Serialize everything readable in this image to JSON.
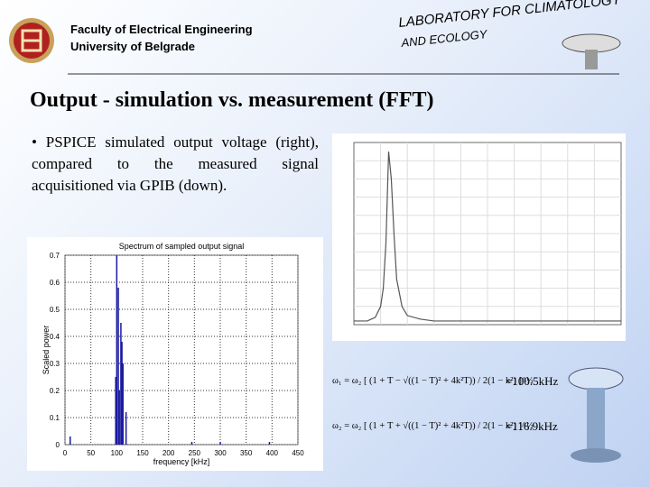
{
  "header": {
    "faculty": "Faculty of Electrical Engineering",
    "university": "University of Belgrade",
    "lab_line1": "LABORATORY FOR CLIMATOLOGY",
    "lab_line2": "AND ECOLOGY"
  },
  "slide": {
    "title": "Output - simulation vs. measurement (FFT)",
    "bullet": "• PSPICE simulated output voltage (right), compared to the measured signal acquisitioned via GPIB (down).",
    "equations": [
      {
        "formula": "ω₁ = ω₂ [ (1 + T − √((1 − T)² + 4k²T)) / 2(1 − k²) ]^½",
        "result": "=100.5kHz"
      },
      {
        "formula": "ω₂ = ω₂ [ (1 + T + √((1 − T)² + 4k²T)) / 2(1 − k²) ]^½",
        "result": "=116.9kHz"
      }
    ]
  },
  "chart_data": [
    {
      "type": "line",
      "color": "#555555",
      "x": [
        0,
        5,
        8,
        10,
        11,
        12,
        13,
        14,
        15,
        16,
        18,
        20,
        25,
        30,
        40,
        50,
        60,
        70,
        80,
        90,
        100
      ],
      "values": [
        0.02,
        0.02,
        0.04,
        0.1,
        0.2,
        0.45,
        0.95,
        0.8,
        0.5,
        0.25,
        0.1,
        0.05,
        0.03,
        0.02,
        0.02,
        0.02,
        0.02,
        0.02,
        0.02,
        0.02,
        0.02
      ],
      "xlim": [
        0,
        100
      ],
      "ylim": [
        0,
        1
      ]
    },
    {
      "type": "bar",
      "title": "Spectrum of sampled output signal",
      "xlabel": "frequency [kHz]",
      "ylabel": "Scaled power",
      "color": "#1a1aa0",
      "x": [
        10,
        98,
        100,
        103,
        105,
        108,
        110,
        112,
        118,
        245,
        300,
        395
      ],
      "values": [
        0.03,
        0.25,
        0.7,
        0.58,
        0.2,
        0.45,
        0.38,
        0.3,
        0.12,
        0.01,
        0.01,
        0.01
      ],
      "xlim": [
        0,
        450
      ],
      "xticks": [
        0,
        50,
        100,
        150,
        200,
        250,
        300,
        350,
        400,
        450
      ],
      "ylim": [
        0,
        0.7
      ],
      "yticks": [
        0,
        0.1,
        0.2,
        0.3,
        0.4,
        0.5,
        0.6,
        0.7
      ],
      "grid": true
    }
  ]
}
